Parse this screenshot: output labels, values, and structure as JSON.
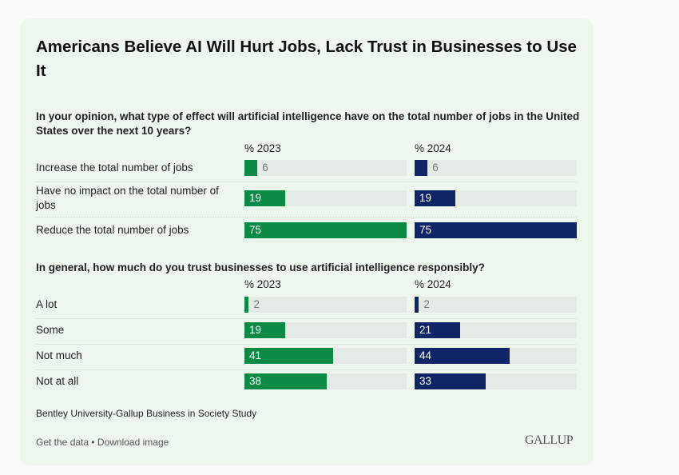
{
  "title": "Americans Believe AI Will Hurt Jobs, Lack Trust in Businesses to Use It",
  "colors": {
    "y2023": "#0a8a45",
    "y2024": "#0f2566",
    "track": "#e3ebe4"
  },
  "source": "Bentley University-Gallup Business in Society Study",
  "links": "Get the data • Download image",
  "logo": "GALLUP",
  "chart_data": [
    {
      "type": "bar",
      "title": "In your opinion, what type of effect will artificial intelligence have on the total number of jobs in the United States over the next 10 years?",
      "categories": [
        "Increase the total number of jobs",
        "Have no impact on the total number of jobs",
        "Reduce the total number of jobs"
      ],
      "series": [
        {
          "name": "% 2023",
          "values": [
            6,
            19,
            75
          ]
        },
        {
          "name": "% 2024",
          "values": [
            6,
            19,
            75
          ]
        }
      ],
      "xlim": [
        0,
        75
      ]
    },
    {
      "type": "bar",
      "title": "In general, how much do you trust businesses to use artificial intelligence responsibly?",
      "categories": [
        "A lot",
        "Some",
        "Not much",
        "Not at all"
      ],
      "series": [
        {
          "name": "% 2023",
          "values": [
            2,
            19,
            41,
            38
          ]
        },
        {
          "name": "% 2024",
          "values": [
            2,
            21,
            44,
            33
          ]
        }
      ],
      "xlim": [
        0,
        75
      ]
    }
  ]
}
